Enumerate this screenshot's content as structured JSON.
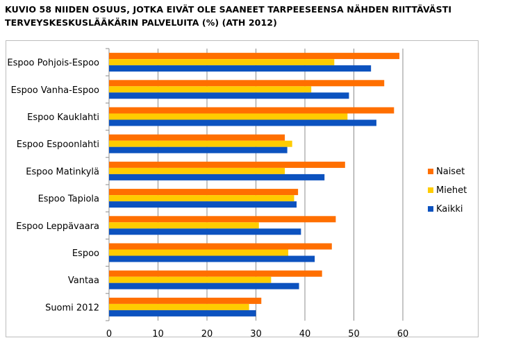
{
  "title": "KUVIO 58 NIIDEN OSUUS, JOTKA EIVÄT OLE SAANEET TARPEESEENSA NÄHDEN RIITTÄVÄSTI TERVEYSKESKUSLÄÄKÄRIN PALVELUITA (%) (ATH 2012)",
  "chart_data": {
    "type": "bar",
    "orientation": "horizontal",
    "title": "KUVIO 58 NIIDEN OSUUS, JOTKA EIVÄT OLE SAANEET TARPEESEENSA NÄHDEN RIITTÄVÄSTI TERVEYSKESKUSLÄÄKÄRIN PALVELUITA (%) (ATH 2012)",
    "categories": [
      "Espoo Pohjois-Espoo",
      "Espoo Vanha-Espoo",
      "Espoo Kauklahti",
      "Espoo Espoonlahti",
      "Espoo Matinkylä",
      "Espoo Tapiola",
      "Espoo Leppävaara",
      "Espoo",
      "Vantaa",
      "Suomi 2012"
    ],
    "series": [
      {
        "name": "Naiset",
        "color": "#FF6F00",
        "values": [
          59.3,
          56.2,
          58.2,
          35.9,
          48.2,
          38.6,
          46.3,
          45.5,
          43.5,
          31.1
        ]
      },
      {
        "name": "Miehet",
        "color": "#FFCC00",
        "values": [
          46.0,
          41.3,
          48.7,
          37.4,
          35.9,
          37.8,
          30.6,
          36.6,
          33.1,
          28.6
        ]
      },
      {
        "name": "Kaikki",
        "color": "#0C52BF",
        "values": [
          53.5,
          49.0,
          54.6,
          36.4,
          44.0,
          38.3,
          39.2,
          42.0,
          38.8,
          30.0
        ]
      }
    ],
    "xlim": [
      0,
      60
    ],
    "xticks": [
      "0",
      "10",
      "20",
      "30",
      "40",
      "50",
      "60"
    ],
    "xlabel": "",
    "ylabel": "",
    "grid": true,
    "legend_position": "right"
  }
}
